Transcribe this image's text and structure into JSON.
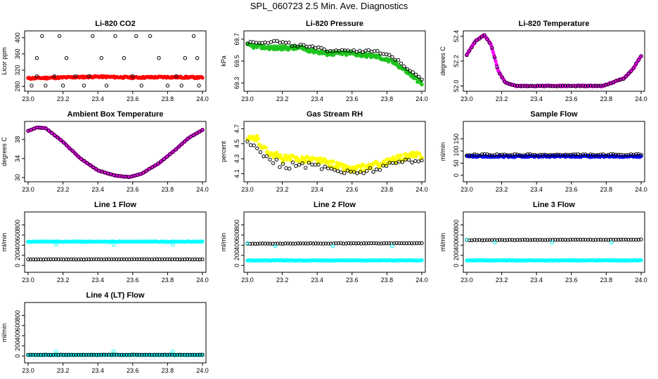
{
  "page_title": "SPL_060723  2.5 Min. Ave. Diagnostics",
  "colors": {
    "red": "#ff0000",
    "green": "#1fc41f",
    "magenta": "#ff00ff",
    "yellow": "#ffff00",
    "blue": "#0000ff",
    "cyan": "#00ffff",
    "black": "#000000"
  },
  "chart_data": [
    {
      "type": "scatter",
      "title": "Li-820 CO2",
      "ylabel": "Licor ppm",
      "xlim": [
        23.0,
        24.0
      ],
      "ylim": [
        275,
        410
      ],
      "xticks": [
        "23.0",
        "23.2",
        "23.4",
        "23.6",
        "23.8",
        "24.0"
      ],
      "yticks": [
        "280",
        "320",
        "360",
        "400"
      ],
      "series": [
        {
          "name": "red",
          "color": "red",
          "style": "fill",
          "base": [
            [
              23.0,
              300
            ],
            [
              23.2,
              302
            ],
            [
              23.4,
              304
            ],
            [
              23.6,
              302
            ],
            [
              23.8,
              303
            ],
            [
              24.0,
              302
            ]
          ],
          "n": 200,
          "jitter": 2
        },
        {
          "name": "black",
          "color": "black",
          "style": "open",
          "points": [
            [
              23.02,
              282
            ],
            [
              23.05,
              305
            ],
            [
              23.08,
              404
            ],
            [
              23.1,
              282
            ],
            [
              23.15,
              305
            ],
            [
              23.18,
              404
            ],
            [
              23.2,
              282
            ],
            [
              23.22,
              350
            ],
            [
              23.27,
              305
            ],
            [
              23.32,
              282
            ],
            [
              23.37,
              404
            ],
            [
              23.42,
              350
            ],
            [
              23.45,
              282
            ],
            [
              23.5,
              404
            ],
            [
              23.55,
              350
            ],
            [
              23.6,
              305
            ],
            [
              23.65,
              282
            ],
            [
              23.7,
              404
            ],
            [
              23.75,
              350
            ],
            [
              23.8,
              282
            ],
            [
              23.85,
              305
            ],
            [
              23.9,
              350
            ],
            [
              23.95,
              404
            ],
            [
              23.98,
              282
            ],
            [
              23.05,
              350
            ],
            [
              23.35,
              305
            ],
            [
              23.62,
              404
            ],
            [
              23.88,
              282
            ],
            [
              23.97,
              350
            ]
          ]
        }
      ]
    },
    {
      "type": "scatter",
      "title": "Li-820 Pressure",
      "ylabel": "kPa",
      "xlim": [
        23.0,
        24.0
      ],
      "ylim": [
        69.25,
        69.75
      ],
      "xticks": [
        "23.0",
        "23.2",
        "23.4",
        "23.6",
        "23.8",
        "24.0"
      ],
      "yticks": [
        "69.3",
        "69.5",
        "69.7"
      ],
      "series": [
        {
          "name": "green",
          "color": "green",
          "style": "fill",
          "base": [
            [
              23.0,
              69.64
            ],
            [
              23.15,
              69.62
            ],
            [
              23.3,
              69.62
            ],
            [
              23.45,
              69.57
            ],
            [
              23.6,
              69.57
            ],
            [
              23.75,
              69.54
            ],
            [
              23.85,
              69.48
            ],
            [
              23.95,
              69.36
            ],
            [
              24.0,
              69.29
            ]
          ],
          "n": 200,
          "jitter": 0.018
        },
        {
          "name": "black",
          "color": "black",
          "style": "open",
          "base": [
            [
              23.0,
              69.67
            ],
            [
              23.15,
              69.68
            ],
            [
              23.3,
              69.64
            ],
            [
              23.45,
              69.6
            ],
            [
              23.6,
              69.6
            ],
            [
              23.75,
              69.58
            ],
            [
              23.85,
              69.52
            ],
            [
              23.95,
              69.4
            ],
            [
              24.0,
              69.34
            ]
          ],
          "n": 60,
          "jitter": 0.015
        }
      ]
    },
    {
      "type": "scatter",
      "title": "Li-820 Temperature",
      "ylabel": "degrees C",
      "xlim": [
        23.0,
        24.0
      ],
      "ylim": [
        51.98,
        52.42
      ],
      "xticks": [
        "23.0",
        "23.2",
        "23.4",
        "23.6",
        "23.8",
        "24.0"
      ],
      "yticks": [
        "52.0",
        "52.2",
        "52.4"
      ],
      "series": [
        {
          "name": "magenta",
          "color": "magenta",
          "style": "fill",
          "base": [
            [
              23.0,
              52.25
            ],
            [
              23.05,
              52.36
            ],
            [
              23.1,
              52.41
            ],
            [
              23.14,
              52.33
            ],
            [
              23.18,
              52.12
            ],
            [
              23.22,
              52.03
            ],
            [
              23.28,
              52.0
            ],
            [
              23.5,
              52.0
            ],
            [
              23.78,
              52.0
            ],
            [
              23.84,
              52.03
            ],
            [
              23.9,
              52.06
            ],
            [
              23.95,
              52.13
            ],
            [
              24.0,
              52.24
            ]
          ],
          "n": 200,
          "jitter": 0.004
        },
        {
          "name": "black",
          "color": "black",
          "style": "open",
          "base": [
            [
              23.0,
              52.25
            ],
            [
              23.05,
              52.36
            ],
            [
              23.1,
              52.41
            ],
            [
              23.14,
              52.33
            ],
            [
              23.18,
              52.12
            ],
            [
              23.22,
              52.03
            ],
            [
              23.28,
              52.0
            ],
            [
              23.5,
              52.0
            ],
            [
              23.78,
              52.0
            ],
            [
              23.84,
              52.03
            ],
            [
              23.9,
              52.06
            ],
            [
              23.95,
              52.13
            ],
            [
              24.0,
              52.24
            ]
          ],
          "n": 70,
          "jitter": 0.003
        }
      ]
    },
    {
      "type": "scatter",
      "title": "Ambient Box Temperature",
      "ylabel": "degrees C",
      "xlim": [
        23.0,
        24.0
      ],
      "ylim": [
        29.7,
        41.2
      ],
      "xticks": [
        "23.0",
        "23.2",
        "23.4",
        "23.6",
        "23.8",
        "24.0"
      ],
      "yticks": [
        "30",
        "34",
        "38"
      ],
      "series": [
        {
          "name": "magenta",
          "color": "magenta",
          "style": "fill",
          "base": [
            [
              23.0,
              39.8
            ],
            [
              23.05,
              40.5
            ],
            [
              23.1,
              40.4
            ],
            [
              23.2,
              37.5
            ],
            [
              23.3,
              34.0
            ],
            [
              23.4,
              31.5
            ],
            [
              23.5,
              30.4
            ],
            [
              23.58,
              30.1
            ],
            [
              23.65,
              30.8
            ],
            [
              23.75,
              33.0
            ],
            [
              23.85,
              36.0
            ],
            [
              23.92,
              38.3
            ],
            [
              24.0,
              40.0
            ]
          ],
          "n": 160,
          "jitter": 0.05
        },
        {
          "name": "black",
          "color": "black",
          "style": "open",
          "base": [
            [
              23.0,
              39.8
            ],
            [
              23.05,
              40.5
            ],
            [
              23.1,
              40.4
            ],
            [
              23.2,
              37.5
            ],
            [
              23.3,
              34.0
            ],
            [
              23.4,
              31.5
            ],
            [
              23.5,
              30.4
            ],
            [
              23.58,
              30.1
            ],
            [
              23.65,
              30.8
            ],
            [
              23.75,
              33.0
            ],
            [
              23.85,
              36.0
            ],
            [
              23.92,
              38.3
            ],
            [
              24.0,
              40.0
            ]
          ],
          "n": 60,
          "jitter": 0.04
        }
      ]
    },
    {
      "type": "scatter",
      "title": "Gas Stream RH",
      "ylabel": "percent",
      "xlim": [
        23.0,
        24.0
      ],
      "ylim": [
        4.03,
        4.76
      ],
      "xticks": [
        "23.0",
        "23.2",
        "23.4",
        "23.6",
        "23.8",
        "24.0"
      ],
      "yticks": [
        "4.1",
        "4.3",
        "4.5",
        "4.7"
      ],
      "series": [
        {
          "name": "yellow",
          "color": "yellow",
          "style": "fill",
          "base": [
            [
              23.0,
              4.55
            ],
            [
              23.05,
              4.58
            ],
            [
              23.1,
              4.42
            ],
            [
              23.2,
              4.3
            ],
            [
              23.3,
              4.3
            ],
            [
              23.4,
              4.28
            ],
            [
              23.5,
              4.22
            ],
            [
              23.6,
              4.15
            ],
            [
              23.7,
              4.2
            ],
            [
              23.8,
              4.25
            ],
            [
              23.9,
              4.33
            ],
            [
              24.0,
              4.35
            ]
          ],
          "n": 180,
          "jitter": 0.045
        },
        {
          "name": "black",
          "color": "black",
          "style": "open",
          "base": [
            [
              23.0,
              4.5
            ],
            [
              23.05,
              4.47
            ],
            [
              23.1,
              4.35
            ],
            [
              23.2,
              4.2
            ],
            [
              23.3,
              4.22
            ],
            [
              23.4,
              4.2
            ],
            [
              23.5,
              4.16
            ],
            [
              23.6,
              4.1
            ],
            [
              23.7,
              4.15
            ],
            [
              23.8,
              4.2
            ],
            [
              23.9,
              4.28
            ],
            [
              24.0,
              4.3
            ]
          ],
          "n": 55,
          "jitter": 0.04
        }
      ]
    },
    {
      "type": "scatter",
      "title": "Sample Flow",
      "ylabel": "ml/min",
      "xlim": [
        23.0,
        24.0
      ],
      "ylim": [
        -15,
        210
      ],
      "xticks": [
        "23.0",
        "23.2",
        "23.4",
        "23.6",
        "23.8",
        "24.0"
      ],
      "yticks": [
        "0",
        "50",
        "100",
        "150"
      ],
      "series": [
        {
          "name": "blue",
          "color": "blue",
          "style": "fill",
          "base": [
            [
              23.0,
              78
            ],
            [
              24.0,
              78
            ]
          ],
          "n": 180,
          "jitter": 3
        },
        {
          "name": "black",
          "color": "black",
          "style": "open",
          "base": [
            [
              23.0,
              84
            ],
            [
              24.0,
              84
            ]
          ],
          "n": 70,
          "jitter": 3
        }
      ]
    },
    {
      "type": "scatter",
      "title": "Line 1 Flow",
      "ylabel": "ml/min",
      "xlim": [
        23.0,
        24.0
      ],
      "ylim": [
        -80,
        1000
      ],
      "xticks": [
        "23.0",
        "23.2",
        "23.4",
        "23.6",
        "23.8",
        "24.0"
      ],
      "yticks": [
        "0",
        "200",
        "400",
        "600",
        "800"
      ],
      "series": [
        {
          "name": "cyan",
          "color": "cyan",
          "style": "fill",
          "base": [
            [
              23.0,
              470
            ],
            [
              24.0,
              470
            ]
          ],
          "n": 200,
          "jitter": 6
        },
        {
          "name": "cyan-dips",
          "color": "cyan",
          "style": "open",
          "points": [
            [
              23.0,
              470
            ],
            [
              23.16,
              410
            ],
            [
              23.49,
              410
            ],
            [
              23.83,
              410
            ]
          ]
        },
        {
          "name": "black",
          "color": "black",
          "style": "open",
          "base": [
            [
              23.0,
              120
            ],
            [
              24.0,
              120
            ]
          ],
          "n": 70,
          "jitter": 3
        }
      ]
    },
    {
      "type": "scatter",
      "title": "Line 2 Flow",
      "ylabel": "ml/min",
      "xlim": [
        23.0,
        24.0
      ],
      "ylim": [
        -80,
        1000
      ],
      "xticks": [
        "23.0",
        "23.2",
        "23.4",
        "23.6",
        "23.8",
        "24.0"
      ],
      "yticks": [
        "0",
        "200",
        "400",
        "600",
        "800"
      ],
      "series": [
        {
          "name": "cyan",
          "color": "cyan",
          "style": "fill",
          "base": [
            [
              23.0,
              100
            ],
            [
              24.0,
              100
            ]
          ],
          "n": 200,
          "jitter": 5
        },
        {
          "name": "black",
          "color": "black",
          "style": "open",
          "base": [
            [
              23.0,
              430
            ],
            [
              24.0,
              440
            ]
          ],
          "n": 70,
          "jitter": 4
        },
        {
          "name": "cyan-dips",
          "color": "cyan",
          "style": "open",
          "points": [
            [
              23.0,
              440
            ],
            [
              23.16,
              380
            ],
            [
              23.49,
              380
            ],
            [
              23.83,
              380
            ]
          ]
        }
      ]
    },
    {
      "type": "scatter",
      "title": "Line 3 Flow",
      "ylabel": "ml/min",
      "xlim": [
        23.0,
        24.0
      ],
      "ylim": [
        -80,
        1000
      ],
      "xticks": [
        "23.0",
        "23.2",
        "23.4",
        "23.6",
        "23.8",
        "24.0"
      ],
      "yticks": [
        "0",
        "200",
        "400",
        "600",
        "800"
      ],
      "series": [
        {
          "name": "cyan",
          "color": "cyan",
          "style": "fill",
          "base": [
            [
              23.0,
              100
            ],
            [
              24.0,
              100
            ]
          ],
          "n": 200,
          "jitter": 5
        },
        {
          "name": "black",
          "color": "black",
          "style": "open",
          "base": [
            [
              23.0,
              500
            ],
            [
              24.0,
              510
            ]
          ],
          "n": 70,
          "jitter": 4
        },
        {
          "name": "cyan-dips",
          "color": "cyan",
          "style": "open",
          "points": [
            [
              23.0,
              510
            ],
            [
              23.16,
              450
            ],
            [
              23.49,
              450
            ],
            [
              23.83,
              450
            ]
          ]
        }
      ]
    },
    {
      "type": "scatter",
      "title": "Line 4 (LT) Flow",
      "ylabel": "ml/min",
      "xlim": [
        23.0,
        24.0
      ],
      "ylim": [
        -80,
        1000
      ],
      "xticks": [
        "23.0",
        "23.2",
        "23.4",
        "23.6",
        "23.8",
        "24.0"
      ],
      "yticks": [
        "0",
        "200",
        "400",
        "600",
        "800"
      ],
      "series": [
        {
          "name": "cyan",
          "color": "cyan",
          "style": "fill",
          "base": [
            [
              23.0,
              20
            ],
            [
              24.0,
              20
            ]
          ],
          "n": 200,
          "jitter": 4
        },
        {
          "name": "cyan-spikes",
          "color": "cyan",
          "style": "open",
          "points": [
            [
              23.16,
              90
            ],
            [
              23.49,
              90
            ],
            [
              23.83,
              90
            ]
          ]
        },
        {
          "name": "black",
          "color": "black",
          "style": "open",
          "base": [
            [
              23.0,
              25
            ],
            [
              24.0,
              25
            ]
          ],
          "n": 70,
          "jitter": 3
        }
      ]
    }
  ]
}
